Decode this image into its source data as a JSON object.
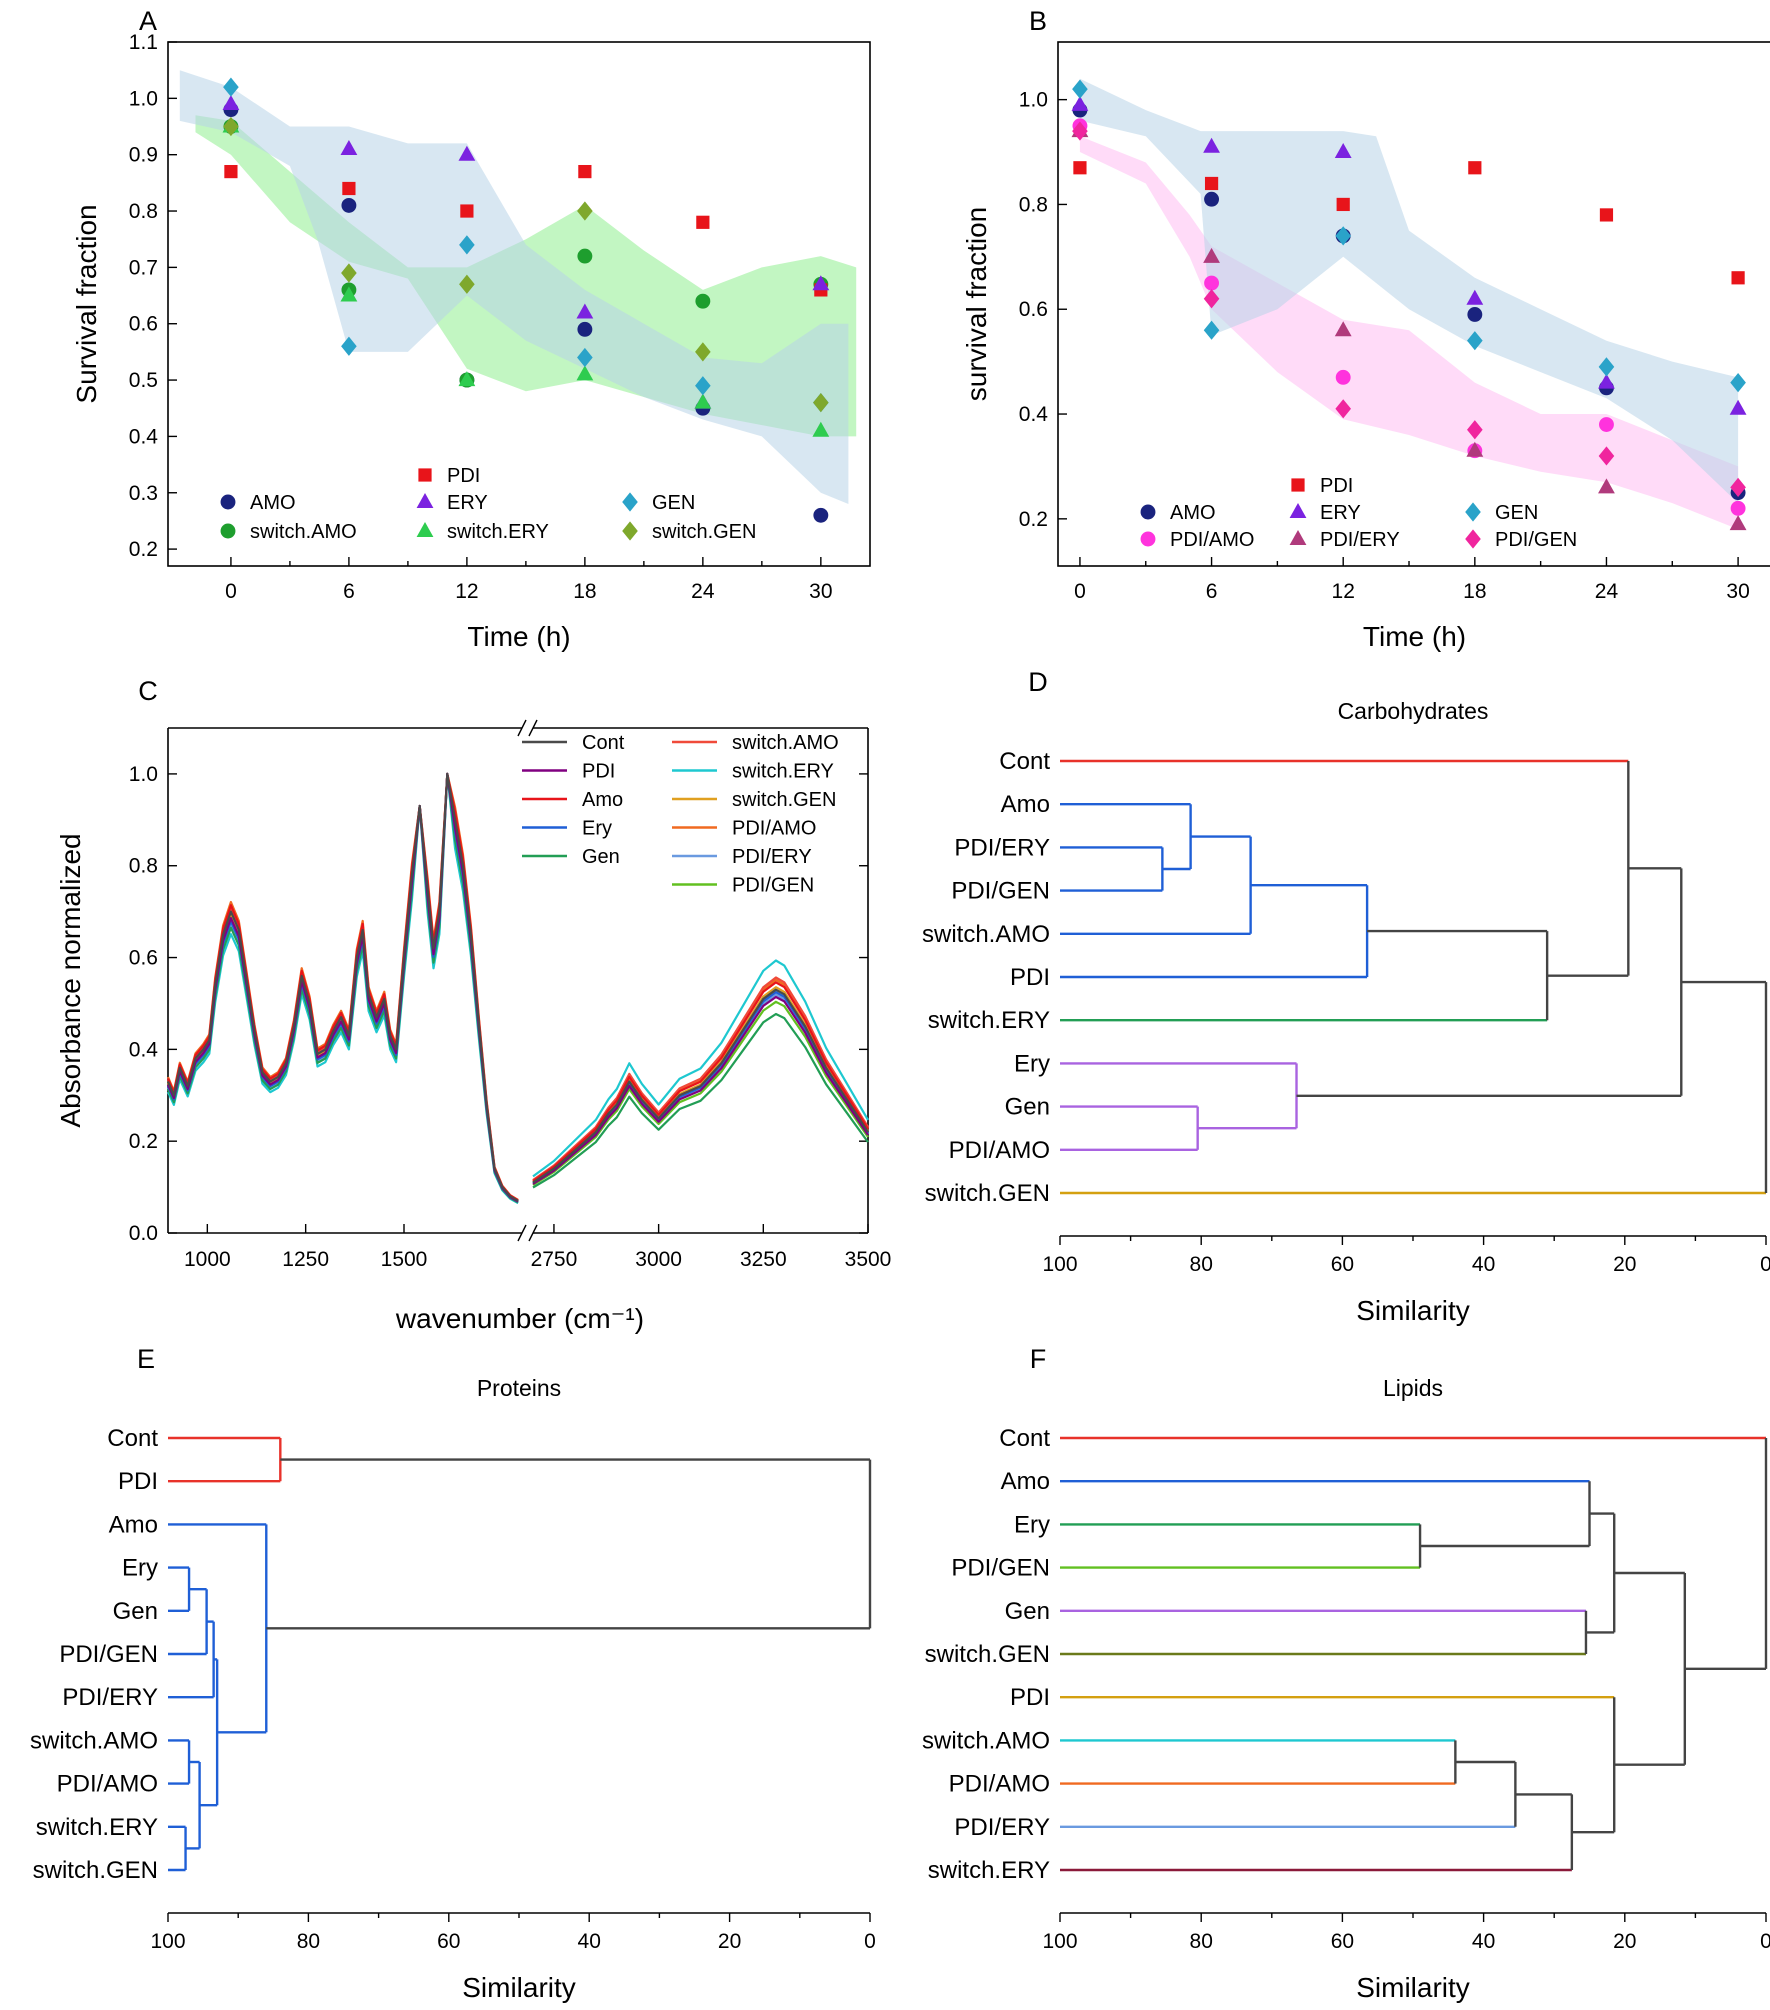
{
  "chart_data": [
    {
      "id": "A",
      "panel_label": "A",
      "type": "scatter",
      "xlabel": "Time (h)",
      "ylabel": "Survival fraction",
      "xticks": [
        "0",
        "6",
        "12",
        "18",
        "24",
        "30"
      ],
      "yticks": [
        "0.2",
        "0.3",
        "0.4",
        "0.5",
        "0.6",
        "0.7",
        "0.8",
        "0.9",
        "1.0",
        "1.1"
      ],
      "xlim": [
        -3.2,
        32.5
      ],
      "ylim": [
        0.17,
        1.1
      ],
      "x": [
        0,
        6,
        12,
        18,
        24,
        30
      ],
      "series": [
        {
          "name": "AMO",
          "marker": "circle",
          "color": "#1a237e",
          "values": [
            0.98,
            0.81,
            0.5,
            0.59,
            0.45,
            0.26
          ]
        },
        {
          "name": "switch.AMO",
          "marker": "circle",
          "color": "#1e9e2e",
          "values": [
            0.95,
            0.66,
            0.5,
            0.72,
            0.64,
            0.67
          ]
        },
        {
          "name": "PDI",
          "marker": "square",
          "color": "#e8141a",
          "values": [
            0.87,
            0.84,
            0.8,
            0.87,
            0.78,
            0.66
          ]
        },
        {
          "name": "ERY",
          "marker": "triangle",
          "color": "#7b22e0",
          "values": [
            0.99,
            0.91,
            0.9,
            0.62,
            0.46,
            0.67
          ]
        },
        {
          "name": "switch.ERY",
          "marker": "triangle",
          "color": "#2ecc4f",
          "values": [
            0.95,
            0.65,
            0.5,
            0.51,
            0.46,
            0.41
          ]
        },
        {
          "name": "GEN",
          "marker": "diamond",
          "color": "#2aa3c9",
          "values": [
            1.02,
            0.56,
            0.74,
            0.54,
            0.49,
            0.46
          ]
        },
        {
          "name": "switch.GEN",
          "marker": "diamond",
          "color": "#7fa82c",
          "values": [
            0.95,
            0.69,
            0.67,
            0.8,
            0.55,
            0.46
          ]
        }
      ],
      "bands": [
        {
          "name": "switch-band",
          "color": "#90ee90",
          "opacity": 0.55,
          "x": [
            -1.8,
            0,
            3,
            6,
            9,
            12,
            15,
            18,
            21,
            24,
            27,
            30,
            31.8
          ],
          "upper": [
            0.97,
            0.96,
            0.87,
            0.78,
            0.7,
            0.7,
            0.75,
            0.81,
            0.73,
            0.66,
            0.7,
            0.72,
            0.7
          ],
          "lower": [
            0.94,
            0.9,
            0.78,
            0.71,
            0.68,
            0.52,
            0.48,
            0.5,
            0.47,
            0.44,
            0.42,
            0.4,
            0.4
          ]
        },
        {
          "name": "single-band",
          "color": "#b8d4e8",
          "opacity": 0.55,
          "x": [
            -2.6,
            0,
            3,
            4.4,
            6,
            9,
            12,
            15,
            18,
            21,
            24,
            27,
            30,
            31.4
          ],
          "upper": [
            1.05,
            1.02,
            0.95,
            0.95,
            0.95,
            0.92,
            0.92,
            0.74,
            0.66,
            0.6,
            0.54,
            0.53,
            0.6,
            0.6
          ],
          "lower": [
            0.96,
            0.94,
            0.88,
            0.75,
            0.55,
            0.55,
            0.65,
            0.57,
            0.52,
            0.47,
            0.43,
            0.4,
            0.3,
            0.28
          ]
        }
      ],
      "legend_placement": "bottom-center"
    },
    {
      "id": "B",
      "panel_label": "B",
      "type": "scatter",
      "xlabel": "Time (h)",
      "ylabel": "survival fraction",
      "xticks": [
        "0",
        "6",
        "12",
        "18",
        "24",
        "30"
      ],
      "yticks": [
        "0.2",
        "0.4",
        "0.6",
        "0.8",
        "1.0"
      ],
      "xlim": [
        -1,
        31.5
      ],
      "ylim": [
        0.11,
        1.11
      ],
      "x": [
        0,
        6,
        12,
        18,
        24,
        30
      ],
      "series": [
        {
          "name": "AMO",
          "marker": "circle",
          "color": "#1a237e",
          "values": [
            0.98,
            0.81,
            0.74,
            0.59,
            0.45,
            0.25
          ]
        },
        {
          "name": "PDI/AMO",
          "marker": "circle",
          "color": "#ff33dd",
          "values": [
            0.95,
            0.65,
            0.47,
            0.33,
            0.38,
            0.22
          ]
        },
        {
          "name": "PDI",
          "marker": "square",
          "color": "#e8141a",
          "values": [
            0.87,
            0.84,
            0.8,
            0.87,
            0.78,
            0.66
          ]
        },
        {
          "name": "ERY",
          "marker": "triangle",
          "color": "#7b22e0",
          "values": [
            0.99,
            0.91,
            0.9,
            0.62,
            0.46,
            0.41
          ]
        },
        {
          "name": "PDI/ERY",
          "marker": "triangle",
          "color": "#b03a7c",
          "values": [
            0.94,
            0.7,
            0.56,
            0.33,
            0.26,
            0.19
          ]
        },
        {
          "name": "GEN",
          "marker": "diamond",
          "color": "#2aa3c9",
          "values": [
            1.02,
            0.56,
            0.74,
            0.54,
            0.49,
            0.46
          ]
        },
        {
          "name": "PDI/GEN",
          "marker": "diamond",
          "color": "#f0259e",
          "values": [
            0.94,
            0.62,
            0.41,
            0.37,
            0.32,
            0.26
          ]
        }
      ],
      "bands": [
        {
          "name": "pdi-band",
          "color": "#ffb0f0",
          "opacity": 0.45,
          "x": [
            0,
            3,
            5,
            6,
            9,
            12,
            15,
            18,
            21,
            24,
            27,
            30
          ],
          "upper": [
            0.93,
            0.88,
            0.78,
            0.72,
            0.65,
            0.58,
            0.56,
            0.46,
            0.4,
            0.4,
            0.35,
            0.3
          ],
          "lower": [
            0.9,
            0.84,
            0.7,
            0.6,
            0.48,
            0.39,
            0.36,
            0.32,
            0.29,
            0.27,
            0.23,
            0.18
          ]
        },
        {
          "name": "single-band",
          "color": "#b8d4e8",
          "opacity": 0.55,
          "x": [
            0,
            3,
            5.5,
            6,
            9,
            12,
            13.5,
            15,
            18,
            21,
            24,
            27,
            30
          ],
          "upper": [
            1.04,
            0.98,
            0.94,
            0.94,
            0.94,
            0.94,
            0.93,
            0.75,
            0.66,
            0.6,
            0.54,
            0.5,
            0.47
          ],
          "lower": [
            0.96,
            0.93,
            0.82,
            0.55,
            0.6,
            0.7,
            0.65,
            0.6,
            0.53,
            0.48,
            0.43,
            0.35,
            0.23
          ]
        }
      ],
      "legend_placement": "bottom-center"
    },
    {
      "id": "C",
      "panel_label": "C",
      "type": "line",
      "xlabel": "wavenumber (cm⁻¹)",
      "ylabel": "Absorbance normalized",
      "xticks_left": [
        "1000",
        "1250",
        "1500"
      ],
      "xticks_right": [
        "2750",
        "3000",
        "3250",
        "3500"
      ],
      "yticks": [
        "0.0",
        "0.2",
        "0.4",
        "0.6",
        "0.8",
        "1.0"
      ],
      "x_break": [
        1800,
        2700
      ],
      "xlim_left": [
        900,
        1800
      ],
      "xlim_right": [
        2700,
        3500
      ],
      "ylim": [
        0,
        1.1
      ],
      "base_left": {
        "x": [
          900,
          915,
          930,
          950,
          970,
          990,
          1005,
          1020,
          1040,
          1060,
          1080,
          1100,
          1120,
          1140,
          1160,
          1180,
          1200,
          1220,
          1240,
          1260,
          1280,
          1300,
          1320,
          1340,
          1360,
          1380,
          1395,
          1410,
          1430,
          1450,
          1465,
          1480,
          1500,
          1520,
          1540,
          1560,
          1575,
          1590,
          1610,
          1630,
          1650,
          1670,
          1690,
          1710,
          1730,
          1750,
          1770,
          1790
        ],
        "y": [
          0.33,
          0.3,
          0.36,
          0.32,
          0.38,
          0.4,
          0.42,
          0.54,
          0.65,
          0.7,
          0.66,
          0.55,
          0.44,
          0.35,
          0.33,
          0.34,
          0.37,
          0.45,
          0.56,
          0.5,
          0.39,
          0.4,
          0.44,
          0.47,
          0.43,
          0.6,
          0.66,
          0.52,
          0.47,
          0.51,
          0.43,
          0.4,
          0.6,
          0.78,
          0.93,
          0.75,
          0.62,
          0.7,
          0.97,
          0.9,
          0.8,
          0.65,
          0.46,
          0.28,
          0.14,
          0.1,
          0.08,
          0.07
        ]
      },
      "base_right": {
        "x": [
          2700,
          2750,
          2800,
          2850,
          2880,
          2900,
          2930,
          2960,
          3000,
          3050,
          3100,
          3150,
          3200,
          3250,
          3280,
          3300,
          3350,
          3400,
          3450,
          3500
        ],
        "y": [
          0.11,
          0.14,
          0.18,
          0.22,
          0.26,
          0.28,
          0.33,
          0.29,
          0.25,
          0.3,
          0.32,
          0.37,
          0.44,
          0.51,
          0.53,
          0.52,
          0.45,
          0.36,
          0.29,
          0.22
        ]
      },
      "series": [
        {
          "name": "Cont",
          "color": "#4a4a4a",
          "scale": 1.0,
          "right_scale": 1.0
        },
        {
          "name": "PDI",
          "color": "#800080",
          "scale": 0.98,
          "right_scale": 0.97
        },
        {
          "name": "Amo",
          "color": "#e8141a",
          "scale": 1.02,
          "right_scale": 1.03
        },
        {
          "name": "Ery",
          "color": "#1f5fd6",
          "scale": 0.97,
          "right_scale": 0.99
        },
        {
          "name": "Gen",
          "color": "#229e55",
          "scale": 0.95,
          "right_scale": 0.9
        },
        {
          "name": "switch.AMO",
          "color": "#f04a3a",
          "scale": 1.01,
          "right_scale": 1.05
        },
        {
          "name": "switch.ERY",
          "color": "#1ec8d0",
          "scale": 0.93,
          "right_scale": 1.12
        },
        {
          "name": "switch.GEN",
          "color": "#e0a020",
          "scale": 0.99,
          "right_scale": 1.01
        },
        {
          "name": "PDI/AMO",
          "color": "#f06a20",
          "scale": 1.03,
          "right_scale": 1.04
        },
        {
          "name": "PDI/ERY",
          "color": "#6a9ae0",
          "scale": 0.96,
          "right_scale": 0.98
        },
        {
          "name": "PDI/GEN",
          "color": "#62c020",
          "scale": 1.0,
          "right_scale": 0.95
        }
      ],
      "legend_placement": "top-right"
    },
    {
      "id": "D",
      "panel_label": "D",
      "type": "dendrogram",
      "title": "Carbohydrates",
      "xlabel": "Similarity",
      "xticks": [
        "100",
        "80",
        "60",
        "40",
        "20",
        "0"
      ],
      "xlim": [
        100,
        0
      ],
      "leaves": [
        "Cont",
        "Amo",
        "PDI/ERY",
        "PDI/GEN",
        "switch.AMO",
        "PDI",
        "switch.ERY",
        "Ery",
        "Gen",
        "PDI/AMO",
        "switch.GEN"
      ],
      "leaf_colors": [
        "#e8322a",
        "#1f5fd6",
        "#1f5fd6",
        "#1f5fd6",
        "#1f5fd6",
        "#1f5fd6",
        "#229e55",
        "#a963e0",
        "#a963e0",
        "#a963e0",
        "#d4a010"
      ],
      "merges": [
        {
          "a": "L2",
          "b": "L3",
          "sim": 85.5,
          "color": "#1f5fd6"
        },
        {
          "a": "L1",
          "b": "M0",
          "sim": 81.5,
          "color": "#1f5fd6"
        },
        {
          "a": "M1",
          "b": "L4",
          "sim": 73.0,
          "color": "#1f5fd6"
        },
        {
          "a": "M2",
          "b": "L5",
          "sim": 56.5,
          "color": "#1f5fd6"
        },
        {
          "a": "M3",
          "b": "L6",
          "sim": 31.0,
          "color": "#444444"
        },
        {
          "a": "L0",
          "b": "M4",
          "sim": 19.5,
          "color": "#444444"
        },
        {
          "a": "L8",
          "b": "L9",
          "sim": 80.5,
          "color": "#a963e0"
        },
        {
          "a": "L7",
          "b": "M6",
          "sim": 66.5,
          "color": "#a963e0"
        },
        {
          "a": "M5",
          "b": "M7",
          "sim": 12.0,
          "color": "#444444"
        },
        {
          "a": "M8",
          "b": "L10",
          "sim": 0.0,
          "color": "#444444"
        }
      ]
    },
    {
      "id": "E",
      "panel_label": "E",
      "type": "dendrogram",
      "title": "Proteins",
      "xlabel": "Similarity",
      "xticks": [
        "100",
        "80",
        "60",
        "40",
        "20",
        "0"
      ],
      "xlim": [
        100,
        0
      ],
      "leaves": [
        "Cont",
        "PDI",
        "Amo",
        "Ery",
        "Gen",
        "PDI/GEN",
        "PDI/ERY",
        "switch.AMO",
        "PDI/AMO",
        "switch.ERY",
        "switch.GEN"
      ],
      "leaf_colors": [
        "#e8322a",
        "#e8322a",
        "#1f5fd6",
        "#1f5fd6",
        "#1f5fd6",
        "#1f5fd6",
        "#1f5fd6",
        "#1f5fd6",
        "#1f5fd6",
        "#1f5fd6",
        "#1f5fd6"
      ],
      "merges": [
        {
          "a": "L0",
          "b": "L1",
          "sim": 84.0,
          "color": "#e8322a"
        },
        {
          "a": "L3",
          "b": "L4",
          "sim": 97.0,
          "color": "#1f5fd6"
        },
        {
          "a": "M1",
          "b": "L5",
          "sim": 94.5,
          "color": "#1f5fd6"
        },
        {
          "a": "M2",
          "b": "L6",
          "sim": 93.5,
          "color": "#1f5fd6"
        },
        {
          "a": "L7",
          "b": "L8",
          "sim": 97.0,
          "color": "#1f5fd6"
        },
        {
          "a": "L9",
          "b": "L10",
          "sim": 97.5,
          "color": "#1f5fd6"
        },
        {
          "a": "M4",
          "b": "M5",
          "sim": 95.5,
          "color": "#1f5fd6"
        },
        {
          "a": "M3",
          "b": "M6",
          "sim": 93.0,
          "color": "#1f5fd6"
        },
        {
          "a": "L2",
          "b": "M7",
          "sim": 86.0,
          "color": "#1f5fd6"
        },
        {
          "a": "M0",
          "b": "M8",
          "sim": 0.0,
          "color": "#444444"
        }
      ]
    },
    {
      "id": "F",
      "panel_label": "F",
      "type": "dendrogram",
      "title": "Lipids",
      "xlabel": "Similarity",
      "xticks": [
        "100",
        "80",
        "60",
        "40",
        "20",
        "0"
      ],
      "xlim": [
        100,
        0
      ],
      "leaves": [
        "Cont",
        "Amo",
        "Ery",
        "PDI/GEN",
        "Gen",
        "switch.GEN",
        "PDI",
        "switch.AMO",
        "PDI/AMO",
        "PDI/ERY",
        "switch.ERY"
      ],
      "leaf_colors": [
        "#e8322a",
        "#1f5fd6",
        "#229e55",
        "#62c020",
        "#a963e0",
        "#6b7a1a",
        "#d4a010",
        "#1ec8d0",
        "#f06a20",
        "#6a9ae0",
        "#8b1a3a"
      ],
      "merges": [
        {
          "a": "L2",
          "b": "L3",
          "sim": 49.0,
          "color": "#444444"
        },
        {
          "a": "L1",
          "b": "M0",
          "sim": 25.0,
          "color": "#444444"
        },
        {
          "a": "L4",
          "b": "L5",
          "sim": 25.5,
          "color": "#444444"
        },
        {
          "a": "M1",
          "b": "M2",
          "sim": 21.5,
          "color": "#444444"
        },
        {
          "a": "L7",
          "b": "L8",
          "sim": 44.0,
          "color": "#444444"
        },
        {
          "a": "M4",
          "b": "L9",
          "sim": 35.5,
          "color": "#444444"
        },
        {
          "a": "M5",
          "b": "L10",
          "sim": 27.5,
          "color": "#444444"
        },
        {
          "a": "L6",
          "b": "M6",
          "sim": 21.5,
          "color": "#444444"
        },
        {
          "a": "M3",
          "b": "M7",
          "sim": 11.5,
          "color": "#444444"
        },
        {
          "a": "L0",
          "b": "M8",
          "sim": 0.0,
          "color": "#444444"
        }
      ]
    }
  ]
}
